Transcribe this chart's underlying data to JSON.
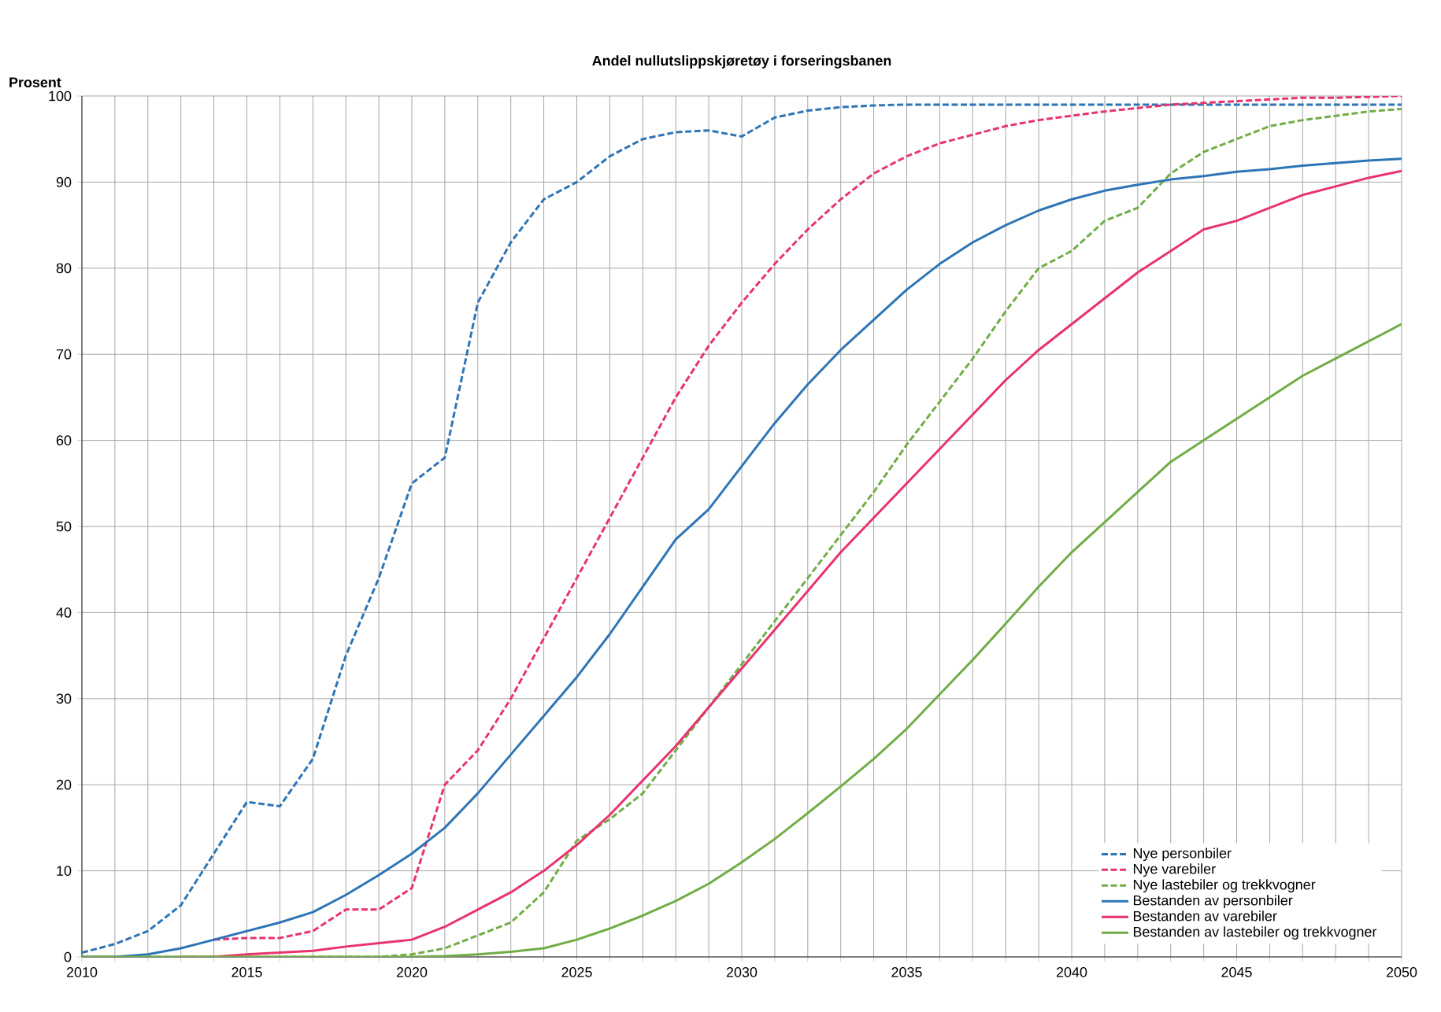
{
  "chart_data": {
    "type": "line",
    "title": "Andel nullutslippskjøretøy  i forseringsbanen",
    "ylabel": "Prosent",
    "x": [
      2010,
      2011,
      2012,
      2013,
      2014,
      2015,
      2016,
      2017,
      2018,
      2019,
      2020,
      2021,
      2022,
      2023,
      2024,
      2025,
      2026,
      2027,
      2028,
      2029,
      2030,
      2031,
      2032,
      2033,
      2034,
      2035,
      2036,
      2037,
      2038,
      2039,
      2040,
      2041,
      2042,
      2043,
      2044,
      2045,
      2046,
      2047,
      2048,
      2049,
      2050
    ],
    "series": [
      {
        "name": "Nye personbiler",
        "color": "#2e75b6",
        "line_style": "dashed",
        "values": [
          0.5,
          1.5,
          3,
          6,
          12,
          18,
          17.5,
          23,
          35,
          44,
          55,
          58,
          76,
          83,
          88,
          90,
          93,
          95,
          95.8,
          96,
          95.3,
          97.5,
          98.3,
          98.7,
          98.9,
          99,
          99,
          99,
          99,
          99,
          99,
          99,
          99,
          99,
          99,
          99,
          99,
          99,
          99,
          99,
          99
        ]
      },
      {
        "name": "Nye varebiler",
        "color": "#e8336e",
        "line_style": "dashed",
        "values": [
          null,
          null,
          null,
          null,
          2,
          2.2,
          2.2,
          3,
          5.5,
          5.5,
          8,
          20,
          24,
          30,
          37,
          44,
          51,
          58,
          65,
          71,
          76,
          80.5,
          84.5,
          88,
          91,
          93,
          94.5,
          95.5,
          96.5,
          97.2,
          97.7,
          98.2,
          98.6,
          99,
          99.2,
          99.4,
          99.6,
          99.8,
          99.8,
          99.9,
          100
        ]
      },
      {
        "name": "Nye lastebiler og trekkvogner",
        "color": "#70ad47",
        "line_style": "dashed",
        "values": [
          0,
          0,
          0,
          0,
          0,
          0,
          0,
          0,
          0,
          0,
          0.3,
          1,
          2.5,
          4,
          7.5,
          13.5,
          16,
          19,
          24,
          29,
          34,
          39,
          44,
          49,
          54,
          59.5,
          64.5,
          69.5,
          75,
          80,
          82,
          85.5,
          87,
          91,
          93.5,
          95,
          96.5,
          97.2,
          97.7,
          98.2,
          98.5
        ]
      },
      {
        "name": "Bestanden av personbiler",
        "color": "#2e75b6",
        "line_style": "solid",
        "values": [
          0,
          0,
          0.3,
          1,
          2,
          3,
          4,
          5.2,
          7.2,
          9.5,
          12,
          15,
          19,
          23.5,
          28,
          32.5,
          37.5,
          43,
          48.5,
          52,
          57,
          62,
          66.5,
          70.5,
          74,
          77.5,
          80.5,
          83,
          85,
          86.7,
          88,
          89,
          89.7,
          90.3,
          90.7,
          91.2,
          91.5,
          91.9,
          92.2,
          92.5,
          92.7
        ]
      },
      {
        "name": "Bestanden av varebiler",
        "color": "#e8336e",
        "line_style": "solid",
        "values": [
          null,
          null,
          null,
          0,
          0,
          0.3,
          0.5,
          0.7,
          1.2,
          1.6,
          2,
          3.5,
          5.5,
          7.5,
          10,
          13,
          16.5,
          20.5,
          24.5,
          29,
          33.5,
          38,
          42.5,
          47,
          51,
          55,
          59,
          63,
          67,
          70.5,
          73.5,
          76.5,
          79.5,
          82,
          84.5,
          85.5,
          87,
          88.5,
          89.5,
          90.5,
          91.3
        ]
      },
      {
        "name": "Bestanden av lastebiler og trekkvogner",
        "color": "#70ad47",
        "line_style": "solid",
        "values": [
          0,
          0,
          0,
          0,
          0,
          0,
          0,
          0,
          0,
          0,
          0,
          0.1,
          0.3,
          0.6,
          1,
          2,
          3.3,
          4.8,
          6.5,
          8.5,
          11,
          13.7,
          16.7,
          19.8,
          23,
          26.5,
          30.5,
          34.5,
          38.7,
          43,
          47,
          50.5,
          54,
          57.5,
          60,
          62.5,
          65,
          67.5,
          69.5,
          71.5,
          73.5
        ]
      }
    ],
    "xlim": [
      2010,
      2050
    ],
    "ylim": [
      0,
      100
    ],
    "xticks": [
      2010,
      {
        "value": 2011,
        "label": null
      },
      {
        "value": 2012,
        "label": null
      },
      {
        "value": 2013,
        "label": null
      },
      {
        "value": 2014,
        "label": null
      },
      2015,
      {
        "value": 2016,
        "label": null
      },
      {
        "value": 2017,
        "label": null
      },
      {
        "value": 2018,
        "label": null
      },
      {
        "value": 2019,
        "label": null
      },
      2020,
      {
        "value": 2021,
        "label": null
      },
      {
        "value": 2022,
        "label": null
      },
      {
        "value": 2023,
        "label": null
      },
      {
        "value": 2024,
        "label": null
      },
      2025,
      {
        "value": 2026,
        "label": null
      },
      {
        "value": 2027,
        "label": null
      },
      {
        "value": 2028,
        "label": null
      },
      {
        "value": 2029,
        "label": null
      },
      2030,
      {
        "value": 2031,
        "label": null
      },
      {
        "value": 2032,
        "label": null
      },
      {
        "value": 2033,
        "label": null
      },
      {
        "value": 2034,
        "label": null
      },
      2035,
      {
        "value": 2036,
        "label": null
      },
      {
        "value": 2037,
        "label": null
      },
      {
        "value": 2038,
        "label": null
      },
      {
        "value": 2039,
        "label": null
      },
      2040,
      {
        "value": 2041,
        "label": null
      },
      {
        "value": 2042,
        "label": null
      },
      {
        "value": 2043,
        "label": null
      },
      {
        "value": 2044,
        "label": null
      },
      2045,
      {
        "value": 2046,
        "label": null
      },
      {
        "value": 2047,
        "label": null
      },
      {
        "value": 2048,
        "label": null
      },
      {
        "value": 2049,
        "label": null
      },
      2050
    ],
    "yticks": [
      0,
      10,
      20,
      30,
      40,
      50,
      60,
      70,
      80,
      90,
      100
    ],
    "grid": true,
    "legend": "bottom right",
    "marker": "none"
  }
}
